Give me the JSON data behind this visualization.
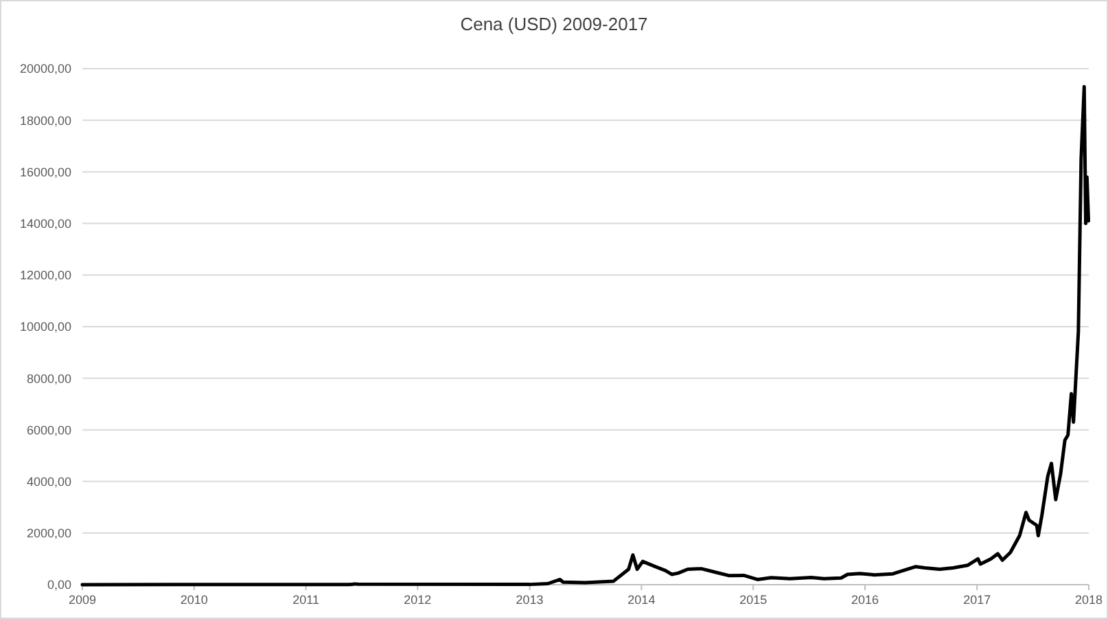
{
  "chart_data": {
    "type": "line",
    "title": "Cena (USD) 2009-2017",
    "x": [
      "2009-01-01",
      "2011-06-01",
      "2011-06-08",
      "2011-06-20",
      "2013-01-01",
      "2013-03-01",
      "2013-04-10",
      "2013-04-20",
      "2013-07-01",
      "2013-10-01",
      "2013-11-20",
      "2013-12-04",
      "2013-12-18",
      "2014-01-05",
      "2014-02-15",
      "2014-03-20",
      "2014-04-10",
      "2014-05-01",
      "2014-06-01",
      "2014-07-15",
      "2014-09-01",
      "2014-10-15",
      "2014-12-01",
      "2015-01-15",
      "2015-03-01",
      "2015-05-01",
      "2015-07-10",
      "2015-08-20",
      "2015-10-15",
      "2015-11-05",
      "2015-12-15",
      "2016-02-01",
      "2016-04-01",
      "2016-06-15",
      "2016-07-15",
      "2016-09-01",
      "2016-10-15",
      "2016-12-01",
      "2017-01-04",
      "2017-01-12",
      "2017-02-15",
      "2017-03-10",
      "2017-03-25",
      "2017-04-20",
      "2017-05-20",
      "2017-06-10",
      "2017-06-20",
      "2017-07-15",
      "2017-07-20",
      "2017-08-01",
      "2017-08-20",
      "2017-09-01",
      "2017-09-15",
      "2017-10-01",
      "2017-10-15",
      "2017-10-25",
      "2017-11-05",
      "2017-11-12",
      "2017-11-28",
      "2017-12-07",
      "2017-12-17",
      "2017-12-22",
      "2017-12-26",
      "2017-12-31"
    ],
    "series": [
      {
        "color": "#000000",
        "values": [
          0,
          10,
          30,
          20,
          10,
          40,
          200,
          100,
          80,
          130,
          600,
          1150,
          600,
          900,
          700,
          550,
          400,
          450,
          600,
          620,
          480,
          350,
          360,
          200,
          270,
          230,
          280,
          230,
          260,
          400,
          430,
          380,
          420,
          700,
          650,
          600,
          650,
          750,
          1000,
          800,
          1000,
          1200,
          950,
          1250,
          1900,
          2800,
          2500,
          2300,
          1900,
          2700,
          4200,
          4700,
          3300,
          4300,
          5600,
          5800,
          7400,
          6300,
          9800,
          16500,
          19300,
          14000,
          15800,
          14100
        ]
      }
    ],
    "xlim": [
      "2009-01-01",
      "2018-01-01"
    ],
    "xticks": [
      {
        "value": "2009-01-01",
        "label": "2009"
      },
      {
        "value": "2010-01-01",
        "label": "2010"
      },
      {
        "value": "2011-01-01",
        "label": "2011"
      },
      {
        "value": "2012-01-01",
        "label": "2012"
      },
      {
        "value": "2013-01-01",
        "label": "2013"
      },
      {
        "value": "2014-01-01",
        "label": "2014"
      },
      {
        "value": "2015-01-01",
        "label": "2015"
      },
      {
        "value": "2016-01-01",
        "label": "2016"
      },
      {
        "value": "2017-01-01",
        "label": "2017"
      },
      {
        "value": "2018-01-01",
        "label": "2018"
      }
    ],
    "ylim": [
      0,
      20000
    ],
    "yticks": [
      {
        "value": 0,
        "label": "0,00"
      },
      {
        "value": 2000,
        "label": "2000,00"
      },
      {
        "value": 4000,
        "label": "4000,00"
      },
      {
        "value": 6000,
        "label": "6000,00"
      },
      {
        "value": 8000,
        "label": "8000,00"
      },
      {
        "value": 10000,
        "label": "10000,00"
      },
      {
        "value": 12000,
        "label": "12000,00"
      },
      {
        "value": 14000,
        "label": "14000,00"
      },
      {
        "value": 16000,
        "label": "16000,00"
      },
      {
        "value": 18000,
        "label": "18000,00"
      },
      {
        "value": 20000,
        "label": "20000,00"
      }
    ],
    "grid": "y",
    "marker": "none",
    "line_style": "solid"
  }
}
